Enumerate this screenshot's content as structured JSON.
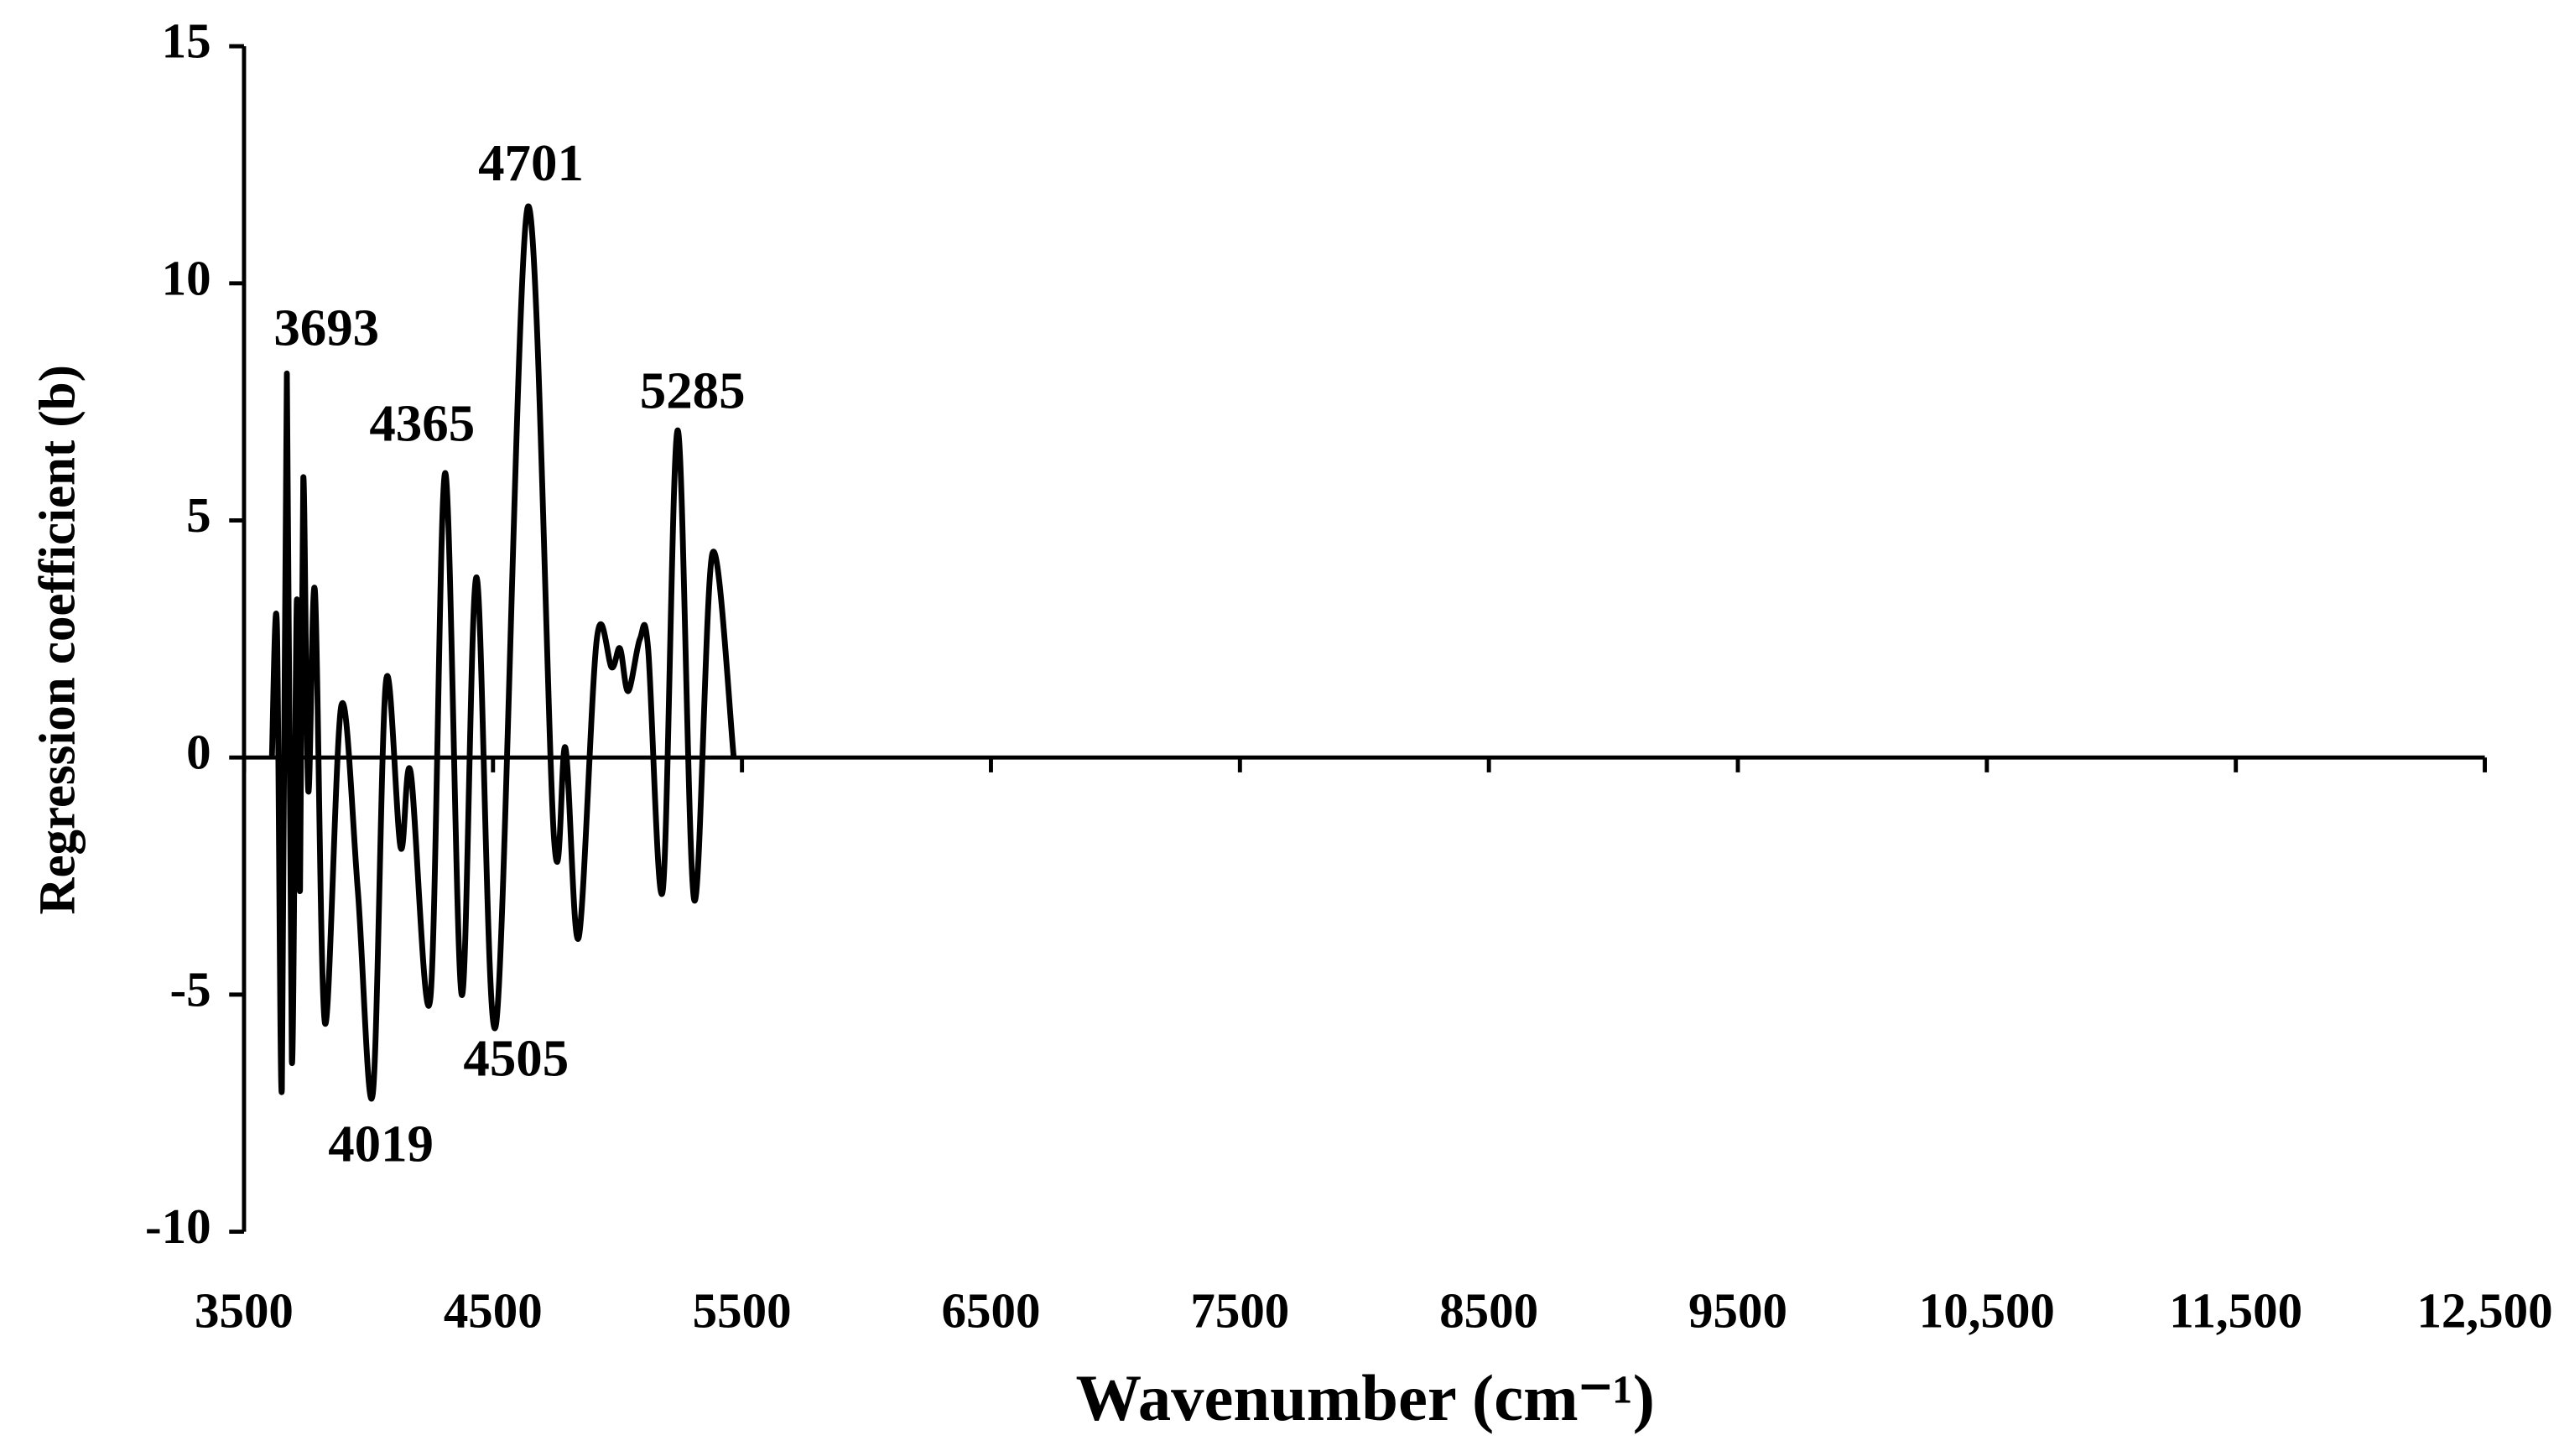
{
  "chart_data": {
    "type": "line",
    "x_label": "Wavenumber (cm⁻¹)",
    "y_label": "Regression coefficient (b)",
    "xlim": [
      3500,
      12500
    ],
    "xticks": [
      3500,
      4500,
      5500,
      6500,
      7500,
      8500,
      9500,
      {
        "value": 10500,
        "label": "10,500"
      },
      {
        "value": 11500,
        "label": "11,500"
      },
      {
        "value": 12500,
        "label": "12,500"
      }
    ],
    "ylim": [
      -10,
      15
    ],
    "yticks": [
      -10,
      -5,
      0,
      5,
      10,
      15
    ],
    "color": "#000000",
    "x": [
      3612,
      3632,
      3652,
      3672,
      3692,
      3712,
      3725,
      3738,
      3758,
      3785,
      3825,
      3891,
      3957,
      4017,
      4070,
      4129,
      4169,
      4248,
      4308,
      4374,
      4434,
      4513,
      4639,
      4745,
      4791,
      4844,
      4917,
      4977,
      5010,
      5043,
      5090,
      5123,
      5182,
      5242,
      5308,
      5381,
      5467
    ],
    "values": [
      0,
      2.8,
      -7.0,
      8.1,
      -6.4,
      3.3,
      -2.8,
      5.9,
      -0.7,
      3.5,
      -5.6,
      1.1,
      -2.8,
      -7.1,
      1.6,
      -1.9,
      -0.3,
      -5.1,
      6.0,
      -5.0,
      3.8,
      -5.6,
      11.6,
      -1.7,
      0.2,
      -3.8,
      2.5,
      1.9,
      2.3,
      1.4,
      2.5,
      2.3,
      -2.8,
      6.9,
      -3.0,
      4.3,
      0
    ],
    "annotations": [
      "3693",
      "4365",
      "4701",
      "5285",
      "4505",
      "4019"
    ]
  }
}
